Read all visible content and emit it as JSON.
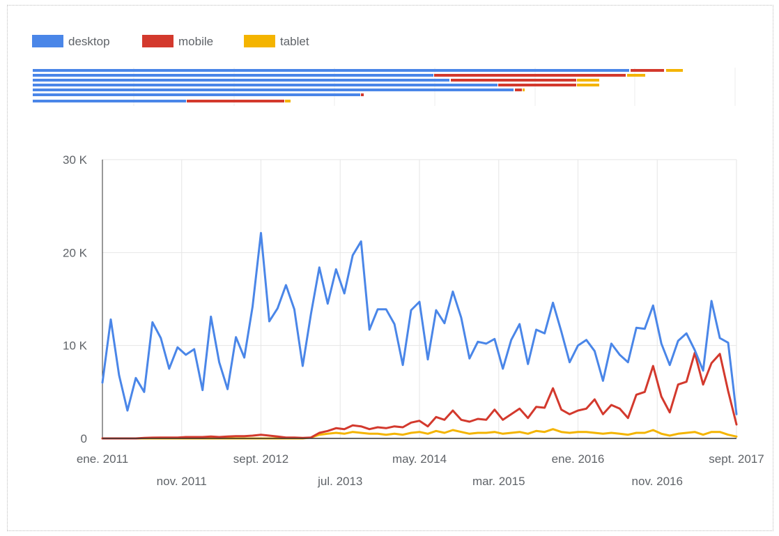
{
  "chart_data": {
    "type": "line",
    "title": "",
    "xlabel": "",
    "ylabel": "",
    "ylim": [
      0,
      30000
    ],
    "yticks": [
      {
        "value": 0,
        "label": "0"
      },
      {
        "value": 10000,
        "label": "10 K"
      },
      {
        "value": 20000,
        "label": "20 K"
      },
      {
        "value": 30000,
        "label": "30 K"
      }
    ],
    "xticks_row1": [
      "ene. 2011",
      "sept. 2012",
      "may. 2014",
      "ene. 2016",
      "sept. 2017"
    ],
    "xticks_row2": [
      "nov. 2011",
      "jul. 2013",
      "mar. 2015",
      "nov. 2016"
    ],
    "legend_position": "top-left",
    "grid": true,
    "colors": {
      "desktop": "#4a86e8",
      "mobile": "#d3392d",
      "tablet": "#f4b400"
    },
    "series": [
      {
        "name": "desktop",
        "values": [
          6000,
          12800,
          6800,
          3000,
          6500,
          5000,
          12500,
          10800,
          7500,
          9800,
          9000,
          9600,
          5200,
          13100,
          8200,
          5300,
          10900,
          8700,
          14200,
          22100,
          12600,
          14000,
          16500,
          13900,
          7800,
          13400,
          18400,
          14500,
          18200,
          15600,
          19700,
          21200,
          11700,
          13900,
          13900,
          12300,
          7900,
          13800,
          14700,
          8500,
          13800,
          12400,
          15800,
          13000,
          8600,
          10400,
          10200,
          10700,
          7500,
          10600,
          12300,
          8000,
          11700,
          11300,
          14600,
          11500,
          8200,
          10000,
          10600,
          9400,
          6200,
          10200,
          9000,
          8200,
          11900,
          11800,
          14300,
          10200,
          7900,
          10500,
          11300,
          9500,
          7300,
          14800,
          10800,
          10300,
          2600
        ]
      },
      {
        "name": "mobile",
        "values": [
          0,
          0,
          0,
          0,
          0,
          50,
          80,
          100,
          100,
          100,
          150,
          150,
          150,
          200,
          150,
          200,
          250,
          250,
          300,
          400,
          300,
          200,
          100,
          100,
          50,
          100,
          600,
          800,
          1100,
          1000,
          1400,
          1300,
          1000,
          1200,
          1100,
          1300,
          1200,
          1700,
          1900,
          1300,
          2300,
          2000,
          3000,
          2000,
          1800,
          2100,
          2000,
          3100,
          2000,
          2600,
          3200,
          2200,
          3400,
          3300,
          5400,
          3100,
          2600,
          3000,
          3200,
          4200,
          2600,
          3600,
          3200,
          2200,
          4700,
          5000,
          7800,
          4500,
          2800,
          5800,
          6100,
          9200,
          5800,
          8100,
          9100,
          5100,
          1500
        ]
      },
      {
        "name": "tablet",
        "values": [
          0,
          0,
          0,
          0,
          0,
          0,
          0,
          0,
          0,
          0,
          0,
          0,
          0,
          0,
          0,
          0,
          0,
          0,
          0,
          0,
          0,
          0,
          0,
          0,
          0,
          100,
          400,
          500,
          600,
          500,
          700,
          600,
          500,
          500,
          400,
          500,
          400,
          600,
          700,
          500,
          800,
          600,
          900,
          700,
          500,
          600,
          600,
          700,
          500,
          600,
          700,
          500,
          800,
          700,
          1000,
          700,
          600,
          700,
          700,
          600,
          500,
          600,
          500,
          400,
          600,
          600,
          900,
          500,
          300,
          500,
          600,
          700,
          400,
          700,
          700,
          400,
          200
        ]
      }
    ]
  }
}
